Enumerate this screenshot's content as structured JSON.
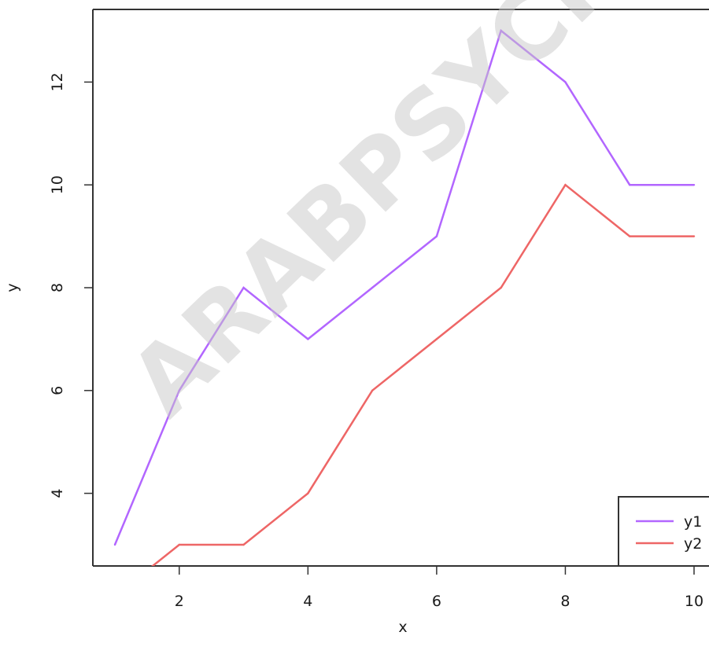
{
  "chart_data": {
    "type": "line",
    "title": "",
    "xlabel": "x",
    "ylabel": "y",
    "x": [
      1,
      2,
      3,
      4,
      5,
      6,
      7,
      8,
      9,
      10
    ],
    "xlim": [
      1,
      10
    ],
    "ylim": [
      3,
      13
    ],
    "x_ticks": [
      2,
      4,
      6,
      8,
      10
    ],
    "y_ticks": [
      4,
      6,
      8,
      10,
      12
    ],
    "grid": false,
    "legend_position": "bottom-right",
    "series": [
      {
        "name": "y1",
        "color": "#b266ff",
        "values": [
          3,
          6,
          8,
          7,
          8,
          9,
          13,
          12,
          10,
          10
        ]
      },
      {
        "name": "y2",
        "color": "#ee6666",
        "values": [
          2,
          3,
          3,
          4,
          6,
          7,
          8,
          10,
          9,
          9
        ]
      }
    ]
  },
  "watermark": {
    "text": "ARABPSYCH"
  }
}
